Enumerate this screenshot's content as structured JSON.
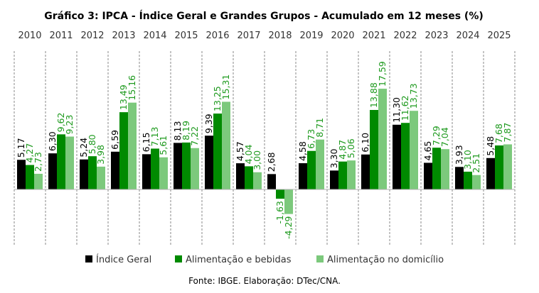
{
  "chart_data": {
    "type": "bar",
    "title": "Gráfico 3: IPCA - Índice Geral e Grandes Grupos - Acumulado em 12 meses (%)",
    "categories": [
      "2010",
      "2011",
      "2012",
      "2013",
      "2014",
      "2015",
      "2016",
      "2017",
      "2018",
      "2019",
      "2020",
      "2021",
      "2022",
      "2023",
      "2024",
      "2025"
    ],
    "series": [
      {
        "name": "Índice Geral",
        "color": "#000000",
        "label_color": "#000000",
        "values": [
          5.17,
          6.3,
          5.24,
          6.59,
          6.15,
          8.13,
          9.39,
          4.57,
          2.68,
          4.58,
          3.3,
          6.1,
          11.3,
          4.65,
          3.93,
          5.48
        ],
        "labels": [
          "5,17",
          "6,30",
          "5,24",
          "6,59",
          "6,15",
          "8,13",
          "9,39",
          "4,57",
          "2,68",
          "4,58",
          "3,30",
          "6,10",
          "11,30",
          "4,65",
          "3,93",
          "5,48"
        ]
      },
      {
        "name": "Alimentação e bebidas",
        "color": "#008a00",
        "label_color": "#1e9a1e",
        "values": [
          4.27,
          9.62,
          5.8,
          13.49,
          7.13,
          8.19,
          13.25,
          4.04,
          -1.63,
          6.73,
          4.87,
          13.88,
          11.62,
          7.29,
          3.1,
          7.68
        ],
        "labels": [
          "4,27",
          "9,62",
          "5,80",
          "13,49",
          "7,13",
          "8,19",
          "13,25",
          "4,04",
          "-1,63",
          "6,73",
          "4,87",
          "13,88",
          "11,62",
          "7,29",
          "3,10",
          "7,68"
        ]
      },
      {
        "name": "Alimentação no domicílio",
        "color": "#7cc97c",
        "label_color": "#1e9a1e",
        "values": [
          2.73,
          9.23,
          3.98,
          15.16,
          5.61,
          7.22,
          15.31,
          3.0,
          -4.29,
          8.71,
          5.06,
          17.59,
          13.73,
          7.04,
          2.51,
          7.87
        ],
        "labels": [
          "2,73",
          "9,23",
          "3,98",
          "15,16",
          "5,61",
          "7,22",
          "15,31",
          "3,00",
          "-4,29",
          "8,71",
          "5,06",
          "17,59",
          "13,73",
          "7,04",
          "2,51",
          "7,87"
        ]
      }
    ],
    "xlabel": "",
    "ylabel": "",
    "ylim": [
      -9.5,
      24
    ],
    "grid": "vertical dashed separators",
    "legend": "bottom-center"
  },
  "source": "Fonte: IBGE. Elaboração: DTec/CNA."
}
